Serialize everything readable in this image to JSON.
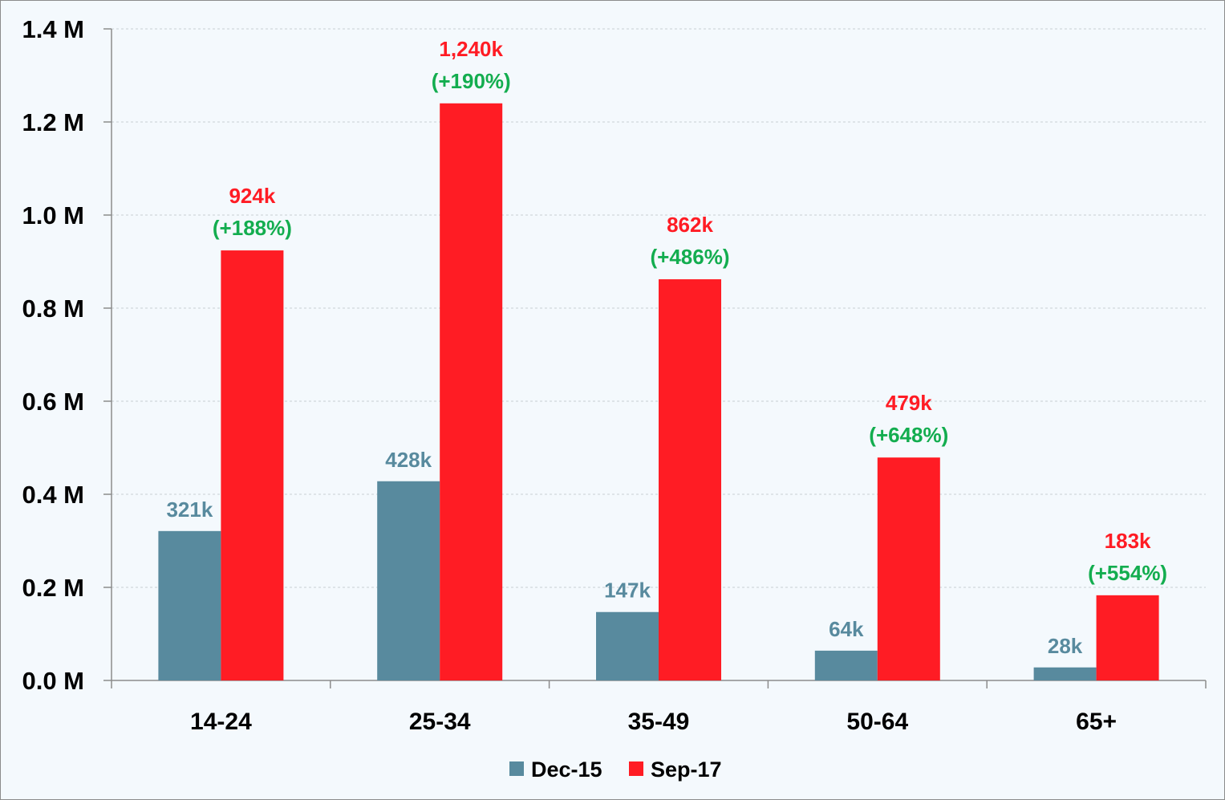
{
  "chart_data": {
    "type": "bar",
    "title": "",
    "xlabel": "",
    "ylabel": "",
    "ylim": [
      0,
      1.4
    ],
    "yticks": [
      "0.0 M",
      "0.2 M",
      "0.4 M",
      "0.6 M",
      "0.8 M",
      "1.0 M",
      "1.2 M",
      "1.4 M"
    ],
    "grid": true,
    "legend_position": "bottom",
    "categories": [
      "14-24",
      "25-34",
      "35-49",
      "50-64",
      "65+"
    ],
    "series": [
      {
        "name": "Dec-15",
        "color": "#588a9e",
        "values": [
          0.321,
          0.428,
          0.147,
          0.064,
          0.028
        ],
        "labels": [
          "321k",
          "428k",
          "147k",
          "64k",
          "28k"
        ]
      },
      {
        "name": "Sep-17",
        "color": "#ff1c24",
        "values": [
          0.924,
          1.24,
          0.862,
          0.479,
          0.183
        ],
        "labels": [
          "924k",
          "1,240k",
          "862k",
          "479k",
          "183k"
        ],
        "growth_labels": [
          "(+188%)",
          "(+190%)",
          "(+486%)",
          "(+648%)",
          "(+554%)"
        ],
        "growth_color": "#13ad4f"
      }
    ]
  }
}
